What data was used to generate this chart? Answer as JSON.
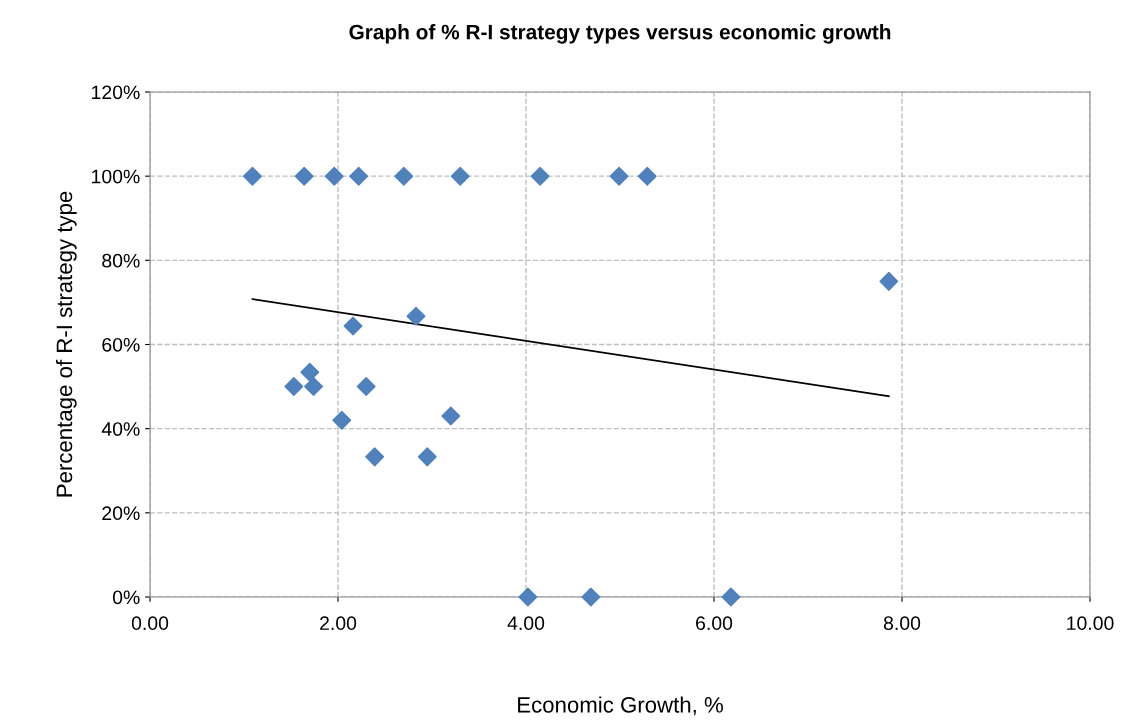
{
  "chart_data": {
    "type": "scatter",
    "title": "Graph of % R-I strategy types versus economic growth",
    "xlabel": "Economic Growth, %",
    "ylabel": "Percentage of R-I strategy type",
    "series": [
      {
        "color": "#4f81bd",
        "marker": "diamond",
        "x": [
          1.09,
          1.64,
          1.96,
          2.22,
          2.7,
          3.3,
          4.15,
          4.99,
          5.29,
          7.86,
          2.83,
          2.16,
          1.7,
          1.53,
          1.74,
          2.3,
          2.04,
          3.2,
          2.39,
          2.95,
          4.02,
          4.69,
          6.18
        ],
        "values": [
          100,
          100,
          100,
          100,
          100,
          100,
          100,
          100,
          100,
          75,
          66.7,
          64.4,
          53.4,
          50,
          50,
          50,
          42,
          43,
          33.3,
          33.3,
          0,
          0,
          0
        ]
      },
      {
        "type": "line",
        "color": "#000000",
        "marker": "none",
        "x": [
          1.09,
          7.86
        ],
        "values": [
          70.8,
          47.7
        ]
      }
    ],
    "xlim": [
      0,
      10
    ],
    "xticks": [
      {
        "value": 0,
        "label": "0.00"
      },
      {
        "value": 2,
        "label": "2.00"
      },
      {
        "value": 4,
        "label": "4.00"
      },
      {
        "value": 6,
        "label": "6.00"
      },
      {
        "value": 8,
        "label": "8.00"
      },
      {
        "value": 10,
        "label": "10.00"
      }
    ],
    "ylim": [
      0,
      120
    ],
    "yticks": [
      {
        "value": 0,
        "label": "0%"
      },
      {
        "value": 20,
        "label": "20%"
      },
      {
        "value": 40,
        "label": "40%"
      },
      {
        "value": 60,
        "label": "60%"
      },
      {
        "value": 80,
        "label": "80%"
      },
      {
        "value": 100,
        "label": "100%"
      },
      {
        "value": 120,
        "label": "120%"
      }
    ],
    "grid": true,
    "legend": false
  }
}
